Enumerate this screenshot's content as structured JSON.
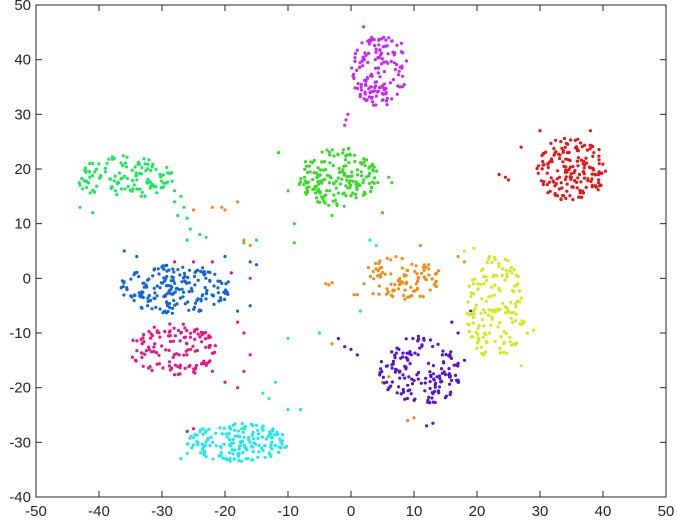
{
  "chart_data": {
    "type": "scatter",
    "title": "",
    "xlabel": "",
    "ylabel": "",
    "xlim": [
      -50,
      50
    ],
    "ylim": [
      -40,
      50
    ],
    "xticks": [
      -50,
      -40,
      -30,
      -20,
      -10,
      0,
      10,
      20,
      30,
      40,
      50
    ],
    "yticks": [
      -40,
      -30,
      -20,
      -10,
      0,
      10,
      20,
      30,
      40,
      50
    ],
    "grid": false,
    "legend": "none",
    "marker_size": 1.6,
    "series": [
      {
        "color": "#cc22ff",
        "cx": 4.5,
        "cy": 38,
        "rx": 4.5,
        "ry": 6.5,
        "n": 150,
        "extra": [
          [
            -0.5,
            30
          ],
          [
            -0.8,
            29
          ],
          [
            -1,
            28
          ],
          [
            6,
            44
          ],
          [
            8,
            43
          ],
          [
            2,
            46
          ]
        ]
      },
      {
        "color": "#ee1111",
        "cx": 35,
        "cy": 20,
        "rx": 5.5,
        "ry": 6,
        "n": 170,
        "extra": [
          [
            24.5,
            18.5
          ],
          [
            23.5,
            19
          ],
          [
            25,
            18
          ],
          [
            27,
            24
          ],
          [
            30,
            27
          ],
          [
            38,
            27
          ]
        ]
      },
      {
        "color": "#33dd22",
        "cx": -2,
        "cy": 18.5,
        "rx": 6.5,
        "ry": 5.5,
        "n": 180,
        "extra": [
          [
            -11.5,
            23
          ],
          [
            -10,
            16
          ],
          [
            -9,
            10
          ],
          [
            -9,
            6.5
          ],
          [
            6,
            18.5
          ],
          [
            6.5,
            17.5
          ],
          [
            -3,
            11.5
          ],
          [
            5,
            12
          ]
        ]
      },
      {
        "color": "#11ee55",
        "cx": -36,
        "cy": 18.5,
        "rx": 8,
        "ry": 4,
        "n": 120,
        "extra": [
          [
            -28,
            16
          ],
          [
            -27,
            15
          ],
          [
            -26,
            11
          ],
          [
            -25.5,
            9
          ],
          [
            -24,
            8
          ],
          [
            -27.5,
            11.5
          ],
          [
            -26,
            7
          ],
          [
            -23,
            7.5
          ],
          [
            -15,
            7
          ],
          [
            -17,
            6.5
          ],
          [
            -43,
            13
          ],
          [
            -41,
            12
          ],
          [
            -28,
            14
          ],
          [
            -26.5,
            13
          ]
        ]
      },
      {
        "color": "#ff8811",
        "cx": 8,
        "cy": 0,
        "rx": 6.5,
        "ry": 4,
        "n": 95,
        "extra": [
          [
            -4,
            -1
          ],
          [
            -3.5,
            -1.2
          ],
          [
            -3,
            -0.8
          ],
          [
            1,
            -3
          ],
          [
            0.5,
            -3
          ],
          [
            -3,
            -12
          ],
          [
            6,
            -18
          ],
          [
            5,
            -19
          ],
          [
            9,
            -26
          ],
          [
            10,
            -25.5
          ],
          [
            -22,
            13
          ],
          [
            -20,
            12.5
          ],
          [
            -18,
            14
          ],
          [
            -17,
            7
          ],
          [
            -16,
            6
          ],
          [
            -25,
            12.5
          ],
          [
            -20.5,
            13
          ],
          [
            17,
            4
          ],
          [
            18,
            3
          ],
          [
            11,
            6
          ]
        ]
      },
      {
        "color": "#1166dd",
        "cx": -28,
        "cy": -2,
        "rx": 9,
        "ry": 4.5,
        "n": 190,
        "extra": [
          [
            -36,
            5
          ],
          [
            -34,
            4
          ],
          [
            -20,
            4
          ],
          [
            -16,
            3
          ],
          [
            -15,
            2.5
          ],
          [
            -16,
            -5
          ],
          [
            -18,
            -6
          ],
          [
            -27,
            -10
          ]
        ]
      },
      {
        "color": "#ee1188",
        "cx": -28,
        "cy": -13,
        "rx": 7,
        "ry": 5,
        "n": 130,
        "extra": [
          [
            -18,
            -8
          ],
          [
            -17,
            -10
          ],
          [
            -16,
            -14
          ],
          [
            -17,
            -17
          ],
          [
            -18,
            -20
          ],
          [
            -20,
            -19
          ],
          [
            -22,
            -17
          ],
          [
            -28,
            3
          ],
          [
            -25,
            3
          ],
          [
            -22,
            3
          ],
          [
            -19,
            1
          ],
          [
            -16,
            0
          ],
          [
            -26,
            -28
          ],
          [
            -25,
            -27.5
          ]
        ]
      },
      {
        "color": "#11eeee",
        "cx": -18,
        "cy": -30,
        "rx": 8,
        "ry": 3.5,
        "n": 160,
        "extra": [
          [
            -14,
            -21
          ],
          [
            -12,
            -19
          ],
          [
            -13,
            -22
          ],
          [
            -10,
            -24
          ],
          [
            -8,
            -24
          ],
          [
            -26,
            -32
          ],
          [
            -27,
            -33
          ],
          [
            -5,
            -10
          ],
          [
            -10,
            -11
          ],
          [
            1.5,
            -6
          ],
          [
            3,
            7
          ],
          [
            4,
            6
          ]
        ]
      },
      {
        "color": "#5511dd",
        "cx": 11,
        "cy": -17,
        "rx": 6.5,
        "ry": 6.5,
        "n": 150,
        "extra": [
          [
            -2,
            -11
          ],
          [
            -1,
            -12.5
          ],
          [
            0,
            -13
          ],
          [
            1,
            -14
          ],
          [
            12,
            -27
          ],
          [
            13,
            -26.5
          ],
          [
            17,
            -10
          ],
          [
            16,
            -8
          ],
          [
            17,
            -19
          ],
          [
            18,
            -15
          ],
          [
            19,
            -6
          ]
        ]
      },
      {
        "color": "#ccee11",
        "cx": 23,
        "cy": -5.5,
        "rx": 4.8,
        "ry": 9.5,
        "n": 150,
        "extra": [
          [
            18,
            5
          ],
          [
            19.5,
            5.5
          ],
          [
            22,
            4
          ],
          [
            28,
            -10
          ],
          [
            29,
            -9.5
          ],
          [
            27,
            -16
          ],
          [
            21,
            -14
          ]
        ]
      }
    ]
  }
}
